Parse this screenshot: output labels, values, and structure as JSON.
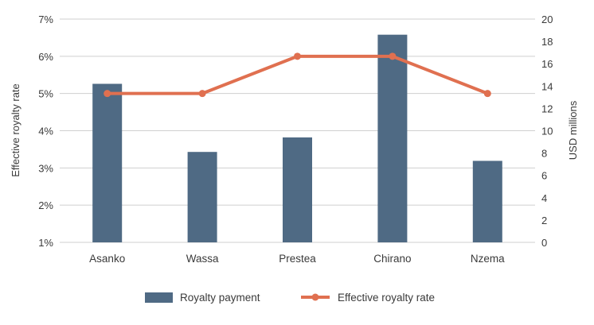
{
  "chart_data": {
    "type": "bar",
    "categories": [
      "Asanko",
      "Wassa",
      "Prestea",
      "Chirano",
      "Nzema"
    ],
    "series": [
      {
        "name": "Royalty payment",
        "type": "bar",
        "axis": "right",
        "color": "#4f6a84",
        "values": [
          14.2,
          8.1,
          9.4,
          18.6,
          7.3
        ]
      },
      {
        "name": "Effective royalty rate",
        "type": "line",
        "axis": "left",
        "color": "#e07050",
        "values": [
          5.0,
          5.0,
          6.0,
          6.0,
          5.0
        ]
      }
    ],
    "ylabel_left": "Effective royalty rate",
    "ylabel_right": "USD millions",
    "ylim_left": [
      1,
      7
    ],
    "ylim_right": [
      0,
      20
    ],
    "yticks_left": [
      "1%",
      "2%",
      "3%",
      "4%",
      "5%",
      "6%",
      "7%"
    ],
    "yticks_right": [
      "0",
      "2",
      "4",
      "6",
      "8",
      "10",
      "12",
      "14",
      "16",
      "18",
      "20"
    ],
    "grid": true,
    "legend": "bottom"
  }
}
